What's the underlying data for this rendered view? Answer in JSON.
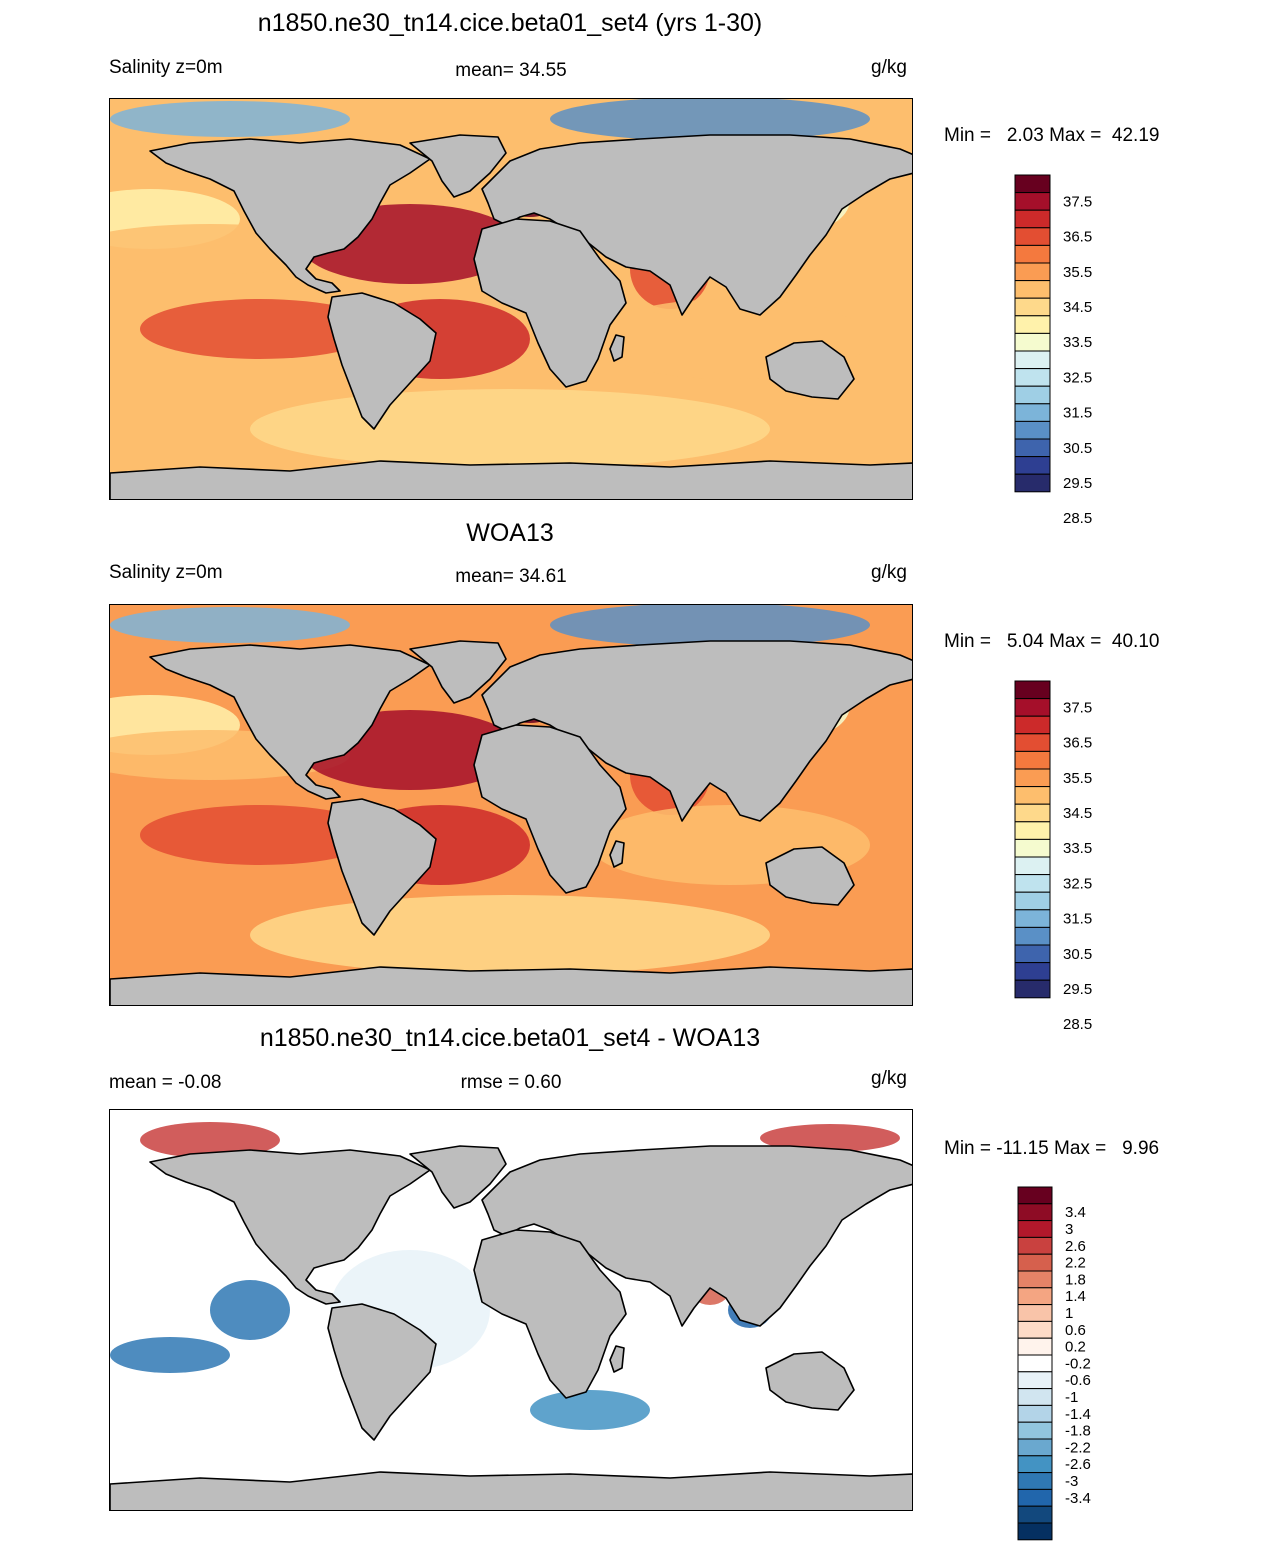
{
  "panels": [
    {
      "title": "n1850.ne30_tn14.cice.beta01_set4 (yrs 1-30)",
      "left_label": "Salinity z=0m",
      "center_label": "mean=  34.55",
      "units": "g/kg",
      "minmax": "Min =   2.03 Max =  42.19",
      "field": "model_salinity",
      "colorbar": {
        "labels": [
          "37.5",
          "36.5",
          "35.5",
          "34.5",
          "33.5",
          "32.5",
          "31.5",
          "30.5",
          "29.5",
          "28.5"
        ],
        "colors": [
          "#67001f",
          "#a50f2a",
          "#cc2a2a",
          "#e34e32",
          "#f4793e",
          "#fa9c53",
          "#fdbe6d",
          "#fed98b",
          "#fff2ab",
          "#f5fbcf",
          "#dcf1f2",
          "#bfe3ee",
          "#9fcfe5",
          "#7cb4d9",
          "#5a90c6",
          "#3e64ad",
          "#2e3f92",
          "#272b6b"
        ]
      },
      "ocean_color": "#fdbe6d"
    },
    {
      "title": "WOA13",
      "left_label": "Salinity z=0m",
      "center_label": "mean=  34.61",
      "units": "g/kg",
      "minmax": "Min =   5.04 Max =  40.10",
      "field": "obs_salinity",
      "colorbar": {
        "labels": [
          "37.5",
          "36.5",
          "35.5",
          "34.5",
          "33.5",
          "32.5",
          "31.5",
          "30.5",
          "29.5",
          "28.5"
        ],
        "colors": [
          "#67001f",
          "#a50f2a",
          "#cc2a2a",
          "#e34e32",
          "#f4793e",
          "#fa9c53",
          "#fdbe6d",
          "#fed98b",
          "#fff2ab",
          "#f5fbcf",
          "#dcf1f2",
          "#bfe3ee",
          "#9fcfe5",
          "#7cb4d9",
          "#5a90c6",
          "#3e64ad",
          "#2e3f92",
          "#272b6b"
        ]
      },
      "ocean_color": "#fa9c53"
    },
    {
      "title": "n1850.ne30_tn14.cice.beta01_set4 - WOA13",
      "left_label": "mean =  -0.08",
      "center_label": "rmse =   0.60",
      "units": "g/kg",
      "minmax": "Min = -11.15 Max =   9.96",
      "field": "difference",
      "colorbar": {
        "labels": [
          "3.4",
          "3",
          "2.6",
          "2.2",
          "1.8",
          "1.4",
          "1",
          "0.6",
          "0.2",
          "-0.2",
          "-0.6",
          "-1",
          "-1.4",
          "-1.8",
          "-2.2",
          "-2.6",
          "-3",
          "-3.4"
        ],
        "colors": [
          "#67001f",
          "#8e0c25",
          "#b2182b",
          "#c9413f",
          "#d6604d",
          "#e58367",
          "#f4a582",
          "#f9c4a9",
          "#fddbc7",
          "#fff3ec",
          "#ffffff",
          "#e8f2f8",
          "#d1e5f0",
          "#b3d4e8",
          "#92c5de",
          "#6aa8cf",
          "#4393c3",
          "#2f78b4",
          "#2166ac",
          "#12487d",
          "#053061"
        ]
      },
      "ocean_color": "#ffffff"
    }
  ]
}
